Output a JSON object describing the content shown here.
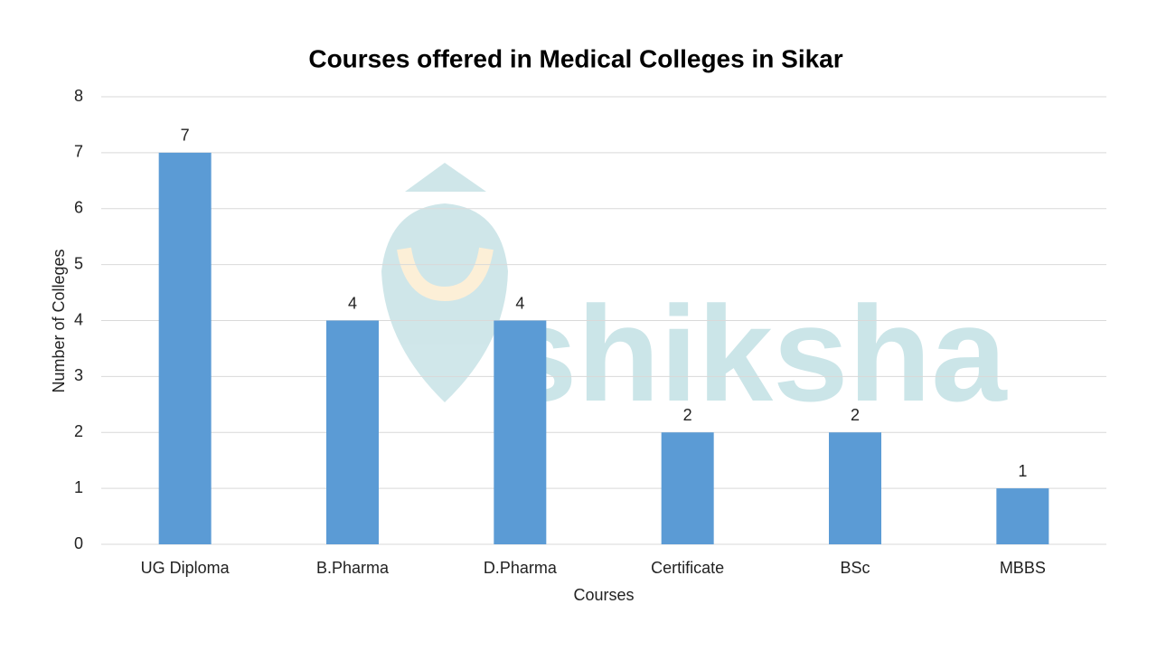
{
  "chart_data": {
    "type": "bar",
    "title": "Courses offered in Medical Colleges in Sikar",
    "x_label": "Courses",
    "y_label": "Number of Colleges",
    "watermark": "shiksha",
    "categories": [
      "UG Diploma",
      "B.Pharma",
      "D.Pharma",
      "Certificate",
      "BSc",
      "MBBS"
    ],
    "values": [
      7,
      4,
      4,
      2,
      2,
      1
    ],
    "color": "#5b9bd5",
    "ylim": [
      0,
      8
    ],
    "yticks": [
      0,
      1,
      2,
      3,
      4,
      5,
      6,
      7,
      8
    ],
    "grid": true,
    "data_labels": true
  }
}
